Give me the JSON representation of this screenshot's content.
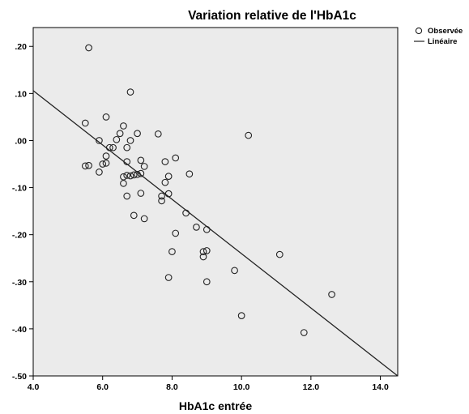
{
  "chart_data": {
    "type": "scatter",
    "title": "Variation relative de l'HbA1c",
    "xlabel": "HbA1c entrée",
    "ylabel": "",
    "xlim": [
      4.0,
      14.5
    ],
    "ylim": [
      -0.5,
      0.24
    ],
    "x_ticks": [
      4.0,
      6.0,
      8.0,
      10.0,
      12.0,
      14.0
    ],
    "x_tick_labels": [
      "4.0",
      "6.0",
      "8.0",
      "10.0",
      "12.0",
      "14.0"
    ],
    "y_ticks": [
      0.2,
      0.1,
      0.0,
      -0.1,
      -0.2,
      -0.3,
      -0.4,
      -0.5
    ],
    "y_tick_labels": [
      ".20",
      ".10",
      ".00",
      "-.10",
      "-.20",
      "-.30",
      "-.40",
      "-.50"
    ],
    "grid": false,
    "legend_position": "top-right",
    "plot_background": "#ebebeb",
    "series": [
      {
        "name": "Observée",
        "kind": "scatter",
        "marker": "hollow-circle",
        "points": [
          [
            5.6,
            0.197
          ],
          [
            6.8,
            0.103
          ],
          [
            6.1,
            0.05
          ],
          [
            5.5,
            0.037
          ],
          [
            6.6,
            0.031
          ],
          [
            6.5,
            0.015
          ],
          [
            7.0,
            0.015
          ],
          [
            7.6,
            0.014
          ],
          [
            10.2,
            0.011
          ],
          [
            6.4,
            0.002
          ],
          [
            5.9,
            0.0
          ],
          [
            6.8,
            0.0
          ],
          [
            6.3,
            -0.015
          ],
          [
            6.2,
            -0.015
          ],
          [
            6.7,
            -0.015
          ],
          [
            6.1,
            -0.033
          ],
          [
            8.1,
            -0.037
          ],
          [
            7.1,
            -0.042
          ],
          [
            6.1,
            -0.048
          ],
          [
            6.7,
            -0.045
          ],
          [
            7.8,
            -0.045
          ],
          [
            6.0,
            -0.05
          ],
          [
            5.5,
            -0.054
          ],
          [
            5.6,
            -0.053
          ],
          [
            7.2,
            -0.055
          ],
          [
            5.9,
            -0.067
          ],
          [
            7.1,
            -0.07
          ],
          [
            7.0,
            -0.072
          ],
          [
            8.5,
            -0.071
          ],
          [
            6.7,
            -0.074
          ],
          [
            6.8,
            -0.075
          ],
          [
            6.6,
            -0.077
          ],
          [
            6.9,
            -0.073
          ],
          [
            7.9,
            -0.076
          ],
          [
            7.8,
            -0.089
          ],
          [
            6.6,
            -0.091
          ],
          [
            7.1,
            -0.112
          ],
          [
            7.9,
            -0.113
          ],
          [
            6.7,
            -0.118
          ],
          [
            7.7,
            -0.118
          ],
          [
            7.7,
            -0.128
          ],
          [
            8.4,
            -0.154
          ],
          [
            6.9,
            -0.159
          ],
          [
            7.2,
            -0.166
          ],
          [
            8.7,
            -0.184
          ],
          [
            9.0,
            -0.189
          ],
          [
            8.1,
            -0.197
          ],
          [
            9.0,
            -0.234
          ],
          [
            8.0,
            -0.236
          ],
          [
            8.9,
            -0.236
          ],
          [
            11.1,
            -0.242
          ],
          [
            8.9,
            -0.247
          ],
          [
            9.8,
            -0.276
          ],
          [
            7.9,
            -0.291
          ],
          [
            9.0,
            -0.3
          ],
          [
            12.6,
            -0.327
          ],
          [
            10.0,
            -0.372
          ],
          [
            11.8,
            -0.408
          ]
        ]
      },
      {
        "name": "Linéaire",
        "kind": "line",
        "x": [
          4.0,
          14.5
        ],
        "y": [
          0.106,
          -0.5
        ]
      }
    ]
  }
}
